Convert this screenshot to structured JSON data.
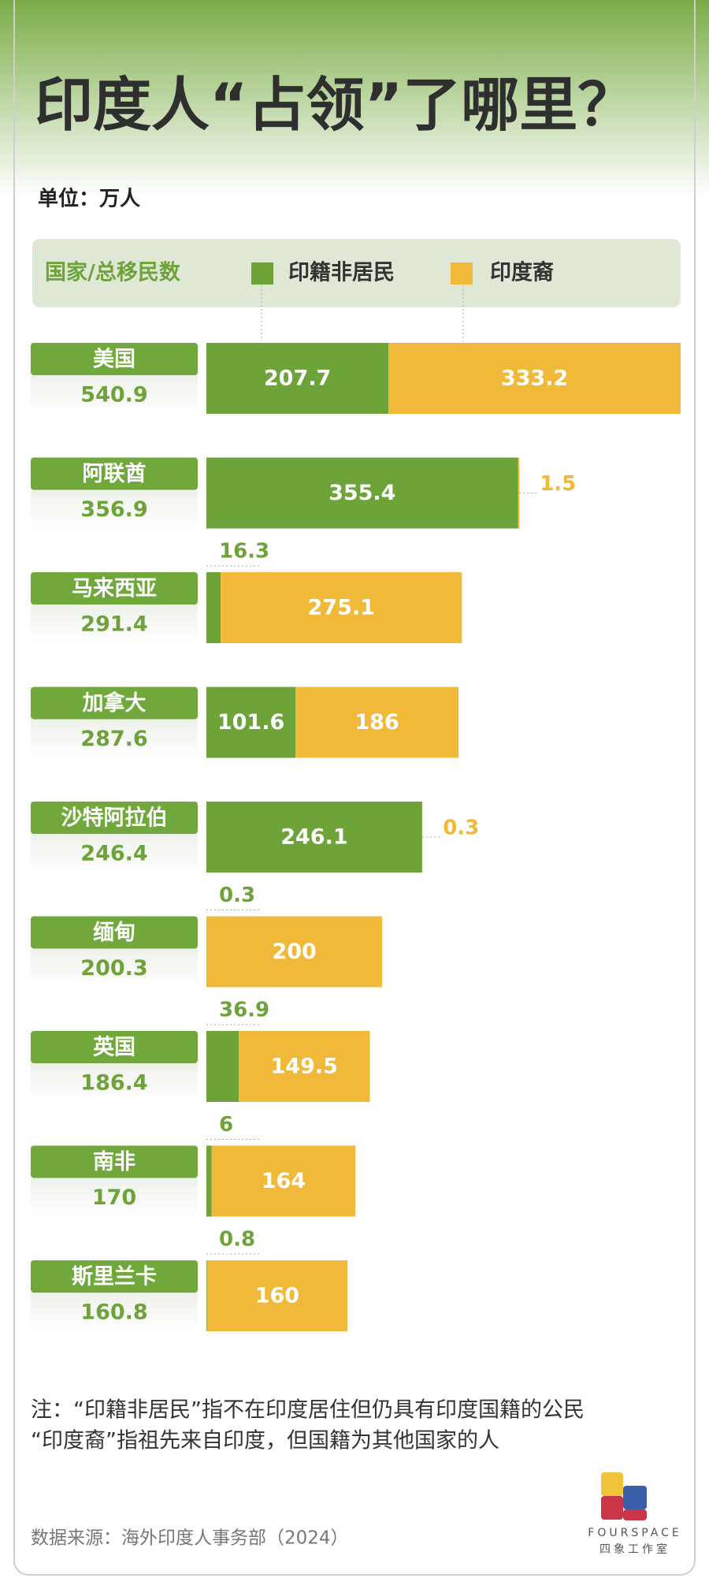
{
  "title": "印度人“占领”了哪里？",
  "unit": "单位：万人",
  "chart_data": {
    "type": "stacked-bar",
    "legend_header": "国家/总移民数",
    "categories": [
      "美国",
      "阿联酋",
      "马来西亚",
      "加拿大",
      "沙特阿拉伯",
      "缅甸",
      "英国",
      "南非",
      "斯里兰卡"
    ],
    "totals": [
      540.9,
      356.9,
      291.4,
      287.6,
      246.4,
      200.3,
      186.4,
      170,
      160.8
    ],
    "series": [
      {
        "name": "印籍非居民",
        "color": "#6ea33a",
        "values": [
          207.7,
          355.4,
          16.3,
          101.6,
          246.1,
          0.3,
          36.9,
          6,
          0.8
        ]
      },
      {
        "name": "印度裔",
        "color": "#f0b93a",
        "values": [
          333.2,
          1.5,
          275.1,
          186,
          0.3,
          200,
          149.5,
          164,
          160
        ]
      }
    ]
  },
  "notes": [
    "注：“印籍非居民”指不在印度居住但仍具有印度国籍的公民",
    "“印度裔”指祖先来自印度，但国籍为其他国家的人"
  ],
  "source": "数据来源：海外印度人事务部（2024）",
  "logo": {
    "en": "FOURSPACE",
    "cn": "四象工作室"
  }
}
